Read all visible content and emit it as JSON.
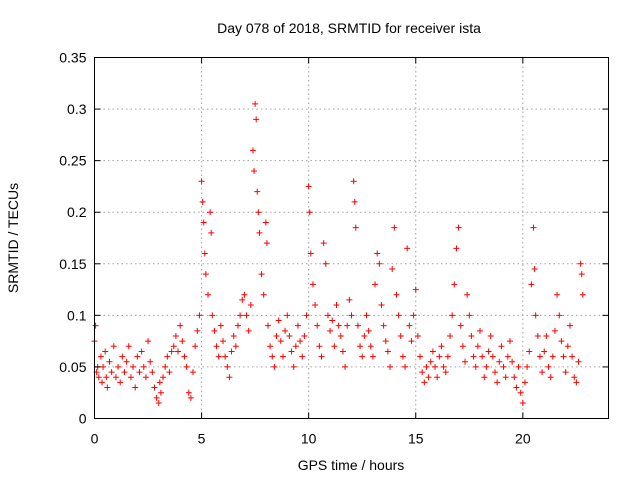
{
  "chart_data": {
    "type": "scatter",
    "title": "Day 078 of 2018, SRMTID for receiver ista",
    "xlabel": "GPS time / hours",
    "ylabel": "SRMTID / TECUs",
    "xlim": [
      0,
      24
    ],
    "ylim": [
      0,
      0.35
    ],
    "x_ticks": [
      0,
      5,
      10,
      15,
      20
    ],
    "x_tick_labels": [
      "0",
      "5",
      "10",
      "15",
      "20"
    ],
    "y_ticks": [
      0,
      0.05,
      0.1,
      0.15,
      0.2,
      0.25,
      0.3,
      0.35
    ],
    "y_tick_labels": [
      "0",
      "0.05",
      "0.1",
      "0.15",
      "0.2",
      "0.25",
      "0.3",
      "0.35"
    ],
    "grid": true,
    "legend": "none",
    "marker": "plus",
    "series": [
      {
        "color": "#ff0000",
        "points": [
          [
            0.0,
            0.075
          ],
          [
            0.05,
            0.09
          ],
          [
            0.1,
            0.045
          ],
          [
            0.15,
            0.05
          ],
          [
            0.2,
            0.04
          ],
          [
            0.3,
            0.06
          ],
          [
            0.35,
            0.035
          ],
          [
            0.4,
            0.05
          ],
          [
            0.5,
            0.065
          ],
          [
            0.55,
            0.04
          ],
          [
            0.6,
            0.03
          ],
          [
            0.7,
            0.055
          ],
          [
            0.8,
            0.045
          ],
          [
            0.9,
            0.07
          ],
          [
            1.0,
            0.04
          ],
          [
            1.1,
            0.05
          ],
          [
            1.2,
            0.035
          ],
          [
            1.3,
            0.06
          ],
          [
            1.4,
            0.045
          ],
          [
            1.5,
            0.055
          ],
          [
            1.6,
            0.07
          ],
          [
            1.7,
            0.04
          ],
          [
            1.8,
            0.05
          ],
          [
            1.9,
            0.03
          ],
          [
            2.0,
            0.06
          ],
          [
            2.1,
            0.045
          ],
          [
            2.2,
            0.065
          ],
          [
            2.3,
            0.05
          ],
          [
            2.4,
            0.04
          ],
          [
            2.5,
            0.075
          ],
          [
            2.6,
            0.055
          ],
          [
            2.7,
            0.045
          ],
          [
            2.8,
            0.03
          ],
          [
            2.9,
            0.02
          ],
          [
            3.0,
            0.015
          ],
          [
            3.05,
            0.035
          ],
          [
            3.1,
            0.025
          ],
          [
            3.2,
            0.04
          ],
          [
            3.3,
            0.05
          ],
          [
            3.4,
            0.06
          ],
          [
            3.5,
            0.045
          ],
          [
            3.6,
            0.065
          ],
          [
            3.7,
            0.07
          ],
          [
            3.8,
            0.08
          ],
          [
            3.9,
            0.065
          ],
          [
            4.0,
            0.09
          ],
          [
            4.1,
            0.075
          ],
          [
            4.2,
            0.06
          ],
          [
            4.3,
            0.05
          ],
          [
            4.4,
            0.025
          ],
          [
            4.5,
            0.02
          ],
          [
            4.6,
            0.045
          ],
          [
            4.7,
            0.07
          ],
          [
            4.8,
            0.085
          ],
          [
            4.9,
            0.1
          ],
          [
            5.0,
            0.23
          ],
          [
            5.05,
            0.21
          ],
          [
            5.1,
            0.19
          ],
          [
            5.15,
            0.16
          ],
          [
            5.2,
            0.14
          ],
          [
            5.3,
            0.12
          ],
          [
            5.4,
            0.2
          ],
          [
            5.45,
            0.18
          ],
          [
            5.5,
            0.1
          ],
          [
            5.6,
            0.085
          ],
          [
            5.7,
            0.07
          ],
          [
            5.8,
            0.06
          ],
          [
            5.9,
            0.09
          ],
          [
            6.0,
            0.075
          ],
          [
            6.1,
            0.06
          ],
          [
            6.2,
            0.05
          ],
          [
            6.3,
            0.04
          ],
          [
            6.4,
            0.065
          ],
          [
            6.5,
            0.08
          ],
          [
            6.6,
            0.07
          ],
          [
            6.7,
            0.09
          ],
          [
            6.8,
            0.1
          ],
          [
            6.9,
            0.115
          ],
          [
            7.0,
            0.12
          ],
          [
            7.1,
            0.1
          ],
          [
            7.2,
            0.085
          ],
          [
            7.3,
            0.11
          ],
          [
            7.4,
            0.26
          ],
          [
            7.45,
            0.24
          ],
          [
            7.5,
            0.305
          ],
          [
            7.55,
            0.29
          ],
          [
            7.6,
            0.22
          ],
          [
            7.65,
            0.2
          ],
          [
            7.7,
            0.18
          ],
          [
            7.8,
            0.14
          ],
          [
            7.9,
            0.12
          ],
          [
            8.0,
            0.19
          ],
          [
            8.05,
            0.17
          ],
          [
            8.1,
            0.09
          ],
          [
            8.2,
            0.07
          ],
          [
            8.3,
            0.06
          ],
          [
            8.4,
            0.05
          ],
          [
            8.5,
            0.08
          ],
          [
            8.6,
            0.095
          ],
          [
            8.7,
            0.075
          ],
          [
            8.8,
            0.06
          ],
          [
            8.9,
            0.085
          ],
          [
            9.0,
            0.1
          ],
          [
            9.1,
            0.08
          ],
          [
            9.2,
            0.065
          ],
          [
            9.3,
            0.05
          ],
          [
            9.4,
            0.07
          ],
          [
            9.5,
            0.09
          ],
          [
            9.6,
            0.075
          ],
          [
            9.7,
            0.06
          ],
          [
            9.8,
            0.08
          ],
          [
            9.9,
            0.1
          ],
          [
            10.0,
            0.225
          ],
          [
            10.05,
            0.2
          ],
          [
            10.1,
            0.16
          ],
          [
            10.2,
            0.13
          ],
          [
            10.3,
            0.11
          ],
          [
            10.4,
            0.09
          ],
          [
            10.5,
            0.07
          ],
          [
            10.6,
            0.06
          ],
          [
            10.7,
            0.17
          ],
          [
            10.8,
            0.15
          ],
          [
            10.9,
            0.1
          ],
          [
            11.0,
            0.085
          ],
          [
            11.1,
            0.095
          ],
          [
            11.2,
            0.07
          ],
          [
            11.3,
            0.11
          ],
          [
            11.4,
            0.09
          ],
          [
            11.5,
            0.08
          ],
          [
            11.6,
            0.065
          ],
          [
            11.7,
            0.05
          ],
          [
            11.8,
            0.09
          ],
          [
            11.9,
            0.115
          ],
          [
            12.0,
            0.1
          ],
          [
            12.1,
            0.23
          ],
          [
            12.15,
            0.21
          ],
          [
            12.2,
            0.185
          ],
          [
            12.3,
            0.09
          ],
          [
            12.4,
            0.07
          ],
          [
            12.5,
            0.06
          ],
          [
            12.6,
            0.08
          ],
          [
            12.7,
            0.1
          ],
          [
            12.8,
            0.085
          ],
          [
            12.9,
            0.07
          ],
          [
            13.0,
            0.06
          ],
          [
            13.1,
            0.13
          ],
          [
            13.2,
            0.16
          ],
          [
            13.3,
            0.15
          ],
          [
            13.4,
            0.11
          ],
          [
            13.5,
            0.09
          ],
          [
            13.6,
            0.075
          ],
          [
            13.7,
            0.065
          ],
          [
            13.8,
            0.05
          ],
          [
            13.9,
            0.145
          ],
          [
            14.0,
            0.185
          ],
          [
            14.1,
            0.12
          ],
          [
            14.2,
            0.1
          ],
          [
            14.3,
            0.08
          ],
          [
            14.4,
            0.06
          ],
          [
            14.5,
            0.05
          ],
          [
            14.6,
            0.165
          ],
          [
            14.7,
            0.09
          ],
          [
            14.8,
            0.075
          ],
          [
            14.9,
            0.1
          ],
          [
            15.0,
            0.125
          ],
          [
            15.1,
            0.08
          ],
          [
            15.2,
            0.06
          ],
          [
            15.3,
            0.045
          ],
          [
            15.4,
            0.035
          ],
          [
            15.5,
            0.05
          ],
          [
            15.6,
            0.04
          ],
          [
            15.7,
            0.055
          ],
          [
            15.8,
            0.065
          ],
          [
            15.9,
            0.05
          ],
          [
            16.0,
            0.04
          ],
          [
            16.1,
            0.06
          ],
          [
            16.2,
            0.07
          ],
          [
            16.3,
            0.05
          ],
          [
            16.4,
            0.045
          ],
          [
            16.5,
            0.06
          ],
          [
            16.6,
            0.08
          ],
          [
            16.7,
            0.1
          ],
          [
            16.8,
            0.13
          ],
          [
            16.9,
            0.165
          ],
          [
            17.0,
            0.185
          ],
          [
            17.1,
            0.09
          ],
          [
            17.2,
            0.07
          ],
          [
            17.3,
            0.055
          ],
          [
            17.4,
            0.12
          ],
          [
            17.5,
            0.1
          ],
          [
            17.6,
            0.08
          ],
          [
            17.7,
            0.06
          ],
          [
            17.8,
            0.05
          ],
          [
            17.9,
            0.07
          ],
          [
            18.0,
            0.085
          ],
          [
            18.1,
            0.06
          ],
          [
            18.2,
            0.04
          ],
          [
            18.3,
            0.05
          ],
          [
            18.4,
            0.065
          ],
          [
            18.5,
            0.08
          ],
          [
            18.6,
            0.06
          ],
          [
            18.7,
            0.045
          ],
          [
            18.8,
            0.035
          ],
          [
            18.9,
            0.055
          ],
          [
            19.0,
            0.07
          ],
          [
            19.1,
            0.05
          ],
          [
            19.2,
            0.04
          ],
          [
            19.3,
            0.06
          ],
          [
            19.4,
            0.075
          ],
          [
            19.5,
            0.055
          ],
          [
            19.6,
            0.04
          ],
          [
            19.7,
            0.03
          ],
          [
            19.8,
            0.05
          ],
          [
            19.9,
            0.025
          ],
          [
            20.0,
            0.015
          ],
          [
            20.1,
            0.035
          ],
          [
            20.2,
            0.05
          ],
          [
            20.3,
            0.065
          ],
          [
            20.4,
            0.13
          ],
          [
            20.5,
            0.185
          ],
          [
            20.55,
            0.145
          ],
          [
            20.6,
            0.1
          ],
          [
            20.7,
            0.08
          ],
          [
            20.8,
            0.06
          ],
          [
            20.9,
            0.045
          ],
          [
            21.0,
            0.065
          ],
          [
            21.1,
            0.08
          ],
          [
            21.2,
            0.05
          ],
          [
            21.3,
            0.04
          ],
          [
            21.4,
            0.06
          ],
          [
            21.5,
            0.085
          ],
          [
            21.6,
            0.12
          ],
          [
            21.7,
            0.1
          ],
          [
            21.8,
            0.075
          ],
          [
            21.9,
            0.06
          ],
          [
            22.0,
            0.045
          ],
          [
            22.1,
            0.07
          ],
          [
            22.2,
            0.09
          ],
          [
            22.3,
            0.06
          ],
          [
            22.4,
            0.04
          ],
          [
            22.5,
            0.035
          ],
          [
            22.6,
            0.055
          ],
          [
            22.7,
            0.15
          ],
          [
            22.75,
            0.14
          ],
          [
            22.8,
            0.12
          ]
        ]
      }
    ]
  }
}
